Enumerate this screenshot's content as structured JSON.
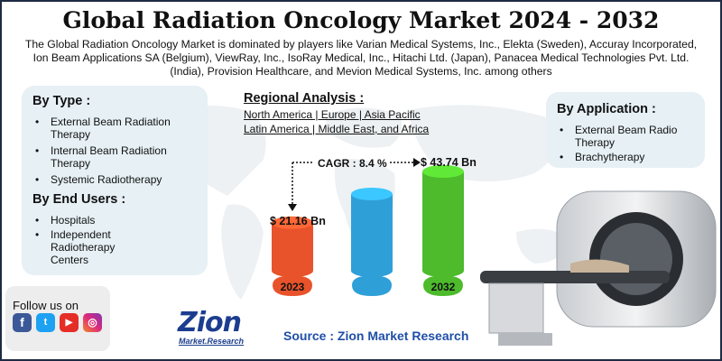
{
  "title": "Global Radiation Oncology Market 2024 - 2032",
  "subtitle": "The Global Radiation Oncology Market is dominated by players like Varian Medical Systems, Inc., Elekta (Sweden), Accuray Incorporated, Ion Beam Applications SA (Belgium), ViewRay, Inc., IsoRay Medical, Inc., Hitachi Ltd. (Japan), Panacea Medical Technologies Pvt. Ltd. (India), Provision Healthcare, and Mevion Medical Systems, Inc. among others",
  "by_type": {
    "heading": "By Type :",
    "items": [
      "External Beam Radiation Therapy",
      "Internal Beam Radiation Therapy",
      "Systemic Radiotherapy"
    ]
  },
  "by_end_users": {
    "heading": "By End Users :",
    "items": [
      "Hospitals",
      "Independent Radiotherapy Centers"
    ]
  },
  "by_application": {
    "heading": "By Application :",
    "items": [
      "External Beam Radio Therapy",
      "Brachytherapy"
    ]
  },
  "regional": {
    "heading": "Regional Analysis :",
    "line1": "North America | Europe | Asia Pacific",
    "line2": "Latin America | Middle East, and Africa"
  },
  "cagr": "CAGR : 8.4 %",
  "chart_data": {
    "type": "bar",
    "categories": [
      "2023",
      "",
      "2032"
    ],
    "values": [
      21.16,
      null,
      43.74
    ],
    "value_labels": [
      "$ 21.16 Bn",
      "",
      "$ 43.74 Bn"
    ],
    "colors": [
      "#e8532b",
      "#2f9fd8",
      "#4dbb2c"
    ]
  },
  "follow": {
    "label": "Follow us on",
    "icons": [
      "facebook-icon",
      "twitter-icon",
      "youtube-icon",
      "instagram-icon"
    ]
  },
  "logo": {
    "name": "Zion",
    "sub": "Market.Research"
  },
  "source": "Source : Zion Market Research",
  "colors": {
    "title": "#111111",
    "panel": "#e6f0f5",
    "source": "#1f4fa8",
    "logo": "#1c3d8f",
    "logo_accent": "#f7941d"
  }
}
